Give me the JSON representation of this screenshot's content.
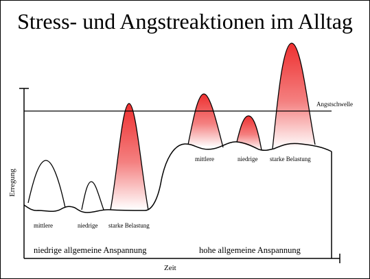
{
  "title": "Stress- und Angstreaktionen im Alltag",
  "axes": {
    "y_label": "Erregung",
    "x_label": "Zeit"
  },
  "threshold": {
    "label": "Angstschwelle"
  },
  "reactions": {
    "low": [
      "mittlere",
      "niedrige",
      "starke Belastung"
    ],
    "high": [
      "mittlere",
      "niedrige",
      "starke Belastung"
    ]
  },
  "phases": {
    "low": "niedrige allgemeine Anspannung",
    "high": "hohe allgemeine Anspannung"
  },
  "colors": {
    "peak_red": "#ee3030",
    "line": "#000000"
  }
}
